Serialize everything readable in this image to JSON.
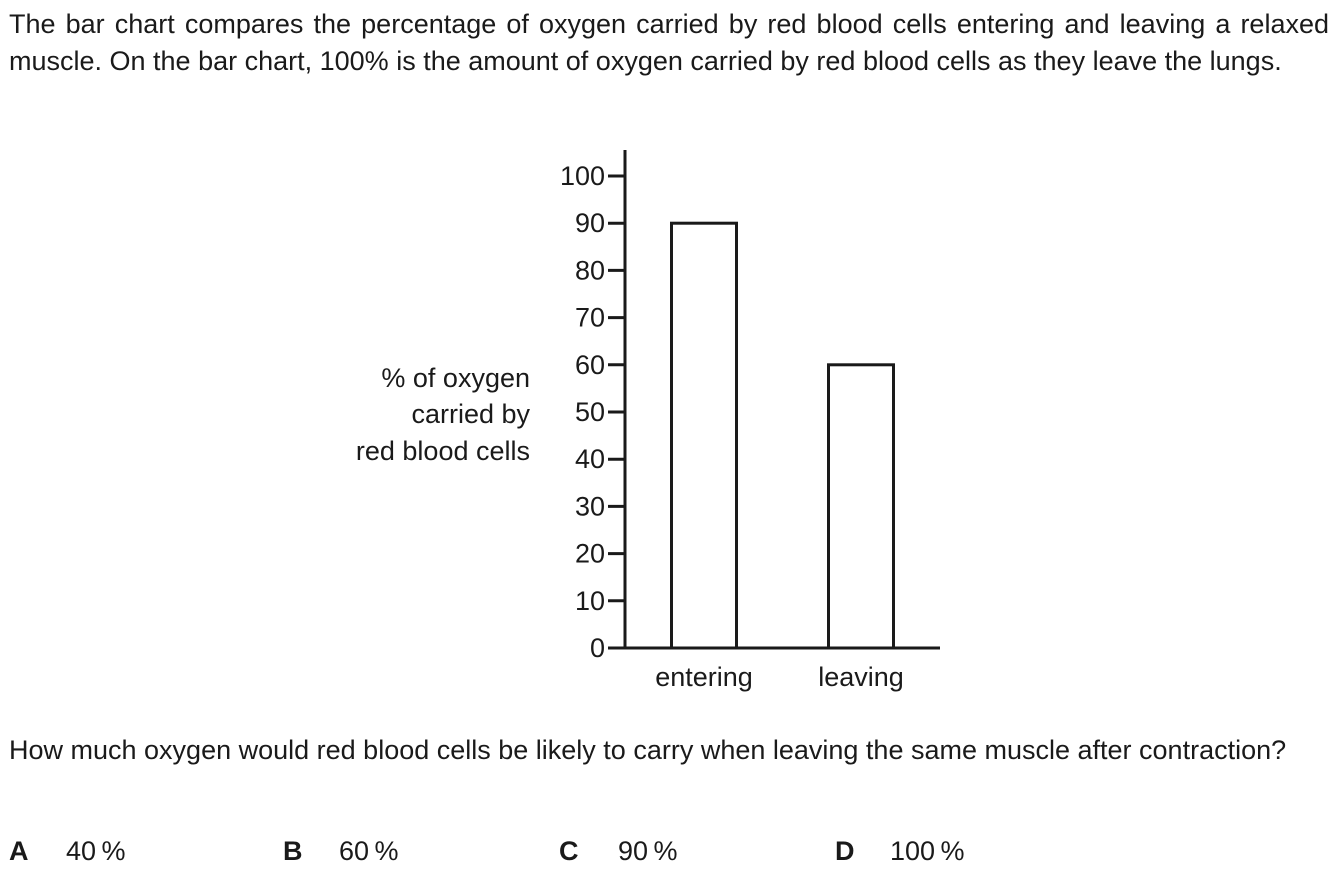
{
  "question": {
    "intro": "The bar chart compares the percentage of oxygen carried by red blood cells entering and leaving a relaxed muscle. On the bar chart, 100% is the amount of oxygen carried by red blood cells as they leave the lungs.",
    "prompt": "How much oxygen would red blood cells be likely to carry when leaving the same muscle after contraction?",
    "options": [
      {
        "letter": "A",
        "value": "40 %"
      },
      {
        "letter": "B",
        "value": "60 %"
      },
      {
        "letter": "C",
        "value": "90 %"
      },
      {
        "letter": "D",
        "value": "100 %"
      }
    ]
  },
  "chart_data": {
    "type": "bar",
    "categories": [
      "entering",
      "leaving"
    ],
    "values": [
      90,
      60
    ],
    "ylabel_lines": [
      "% of oxygen",
      "carried by",
      "red blood cells"
    ],
    "yticks": [
      0,
      10,
      20,
      30,
      40,
      50,
      60,
      70,
      80,
      90,
      100
    ],
    "ylim": [
      0,
      105
    ],
    "grid": false,
    "bar_fill": "#ffffff",
    "bar_stroke": "#1a1a1a"
  }
}
